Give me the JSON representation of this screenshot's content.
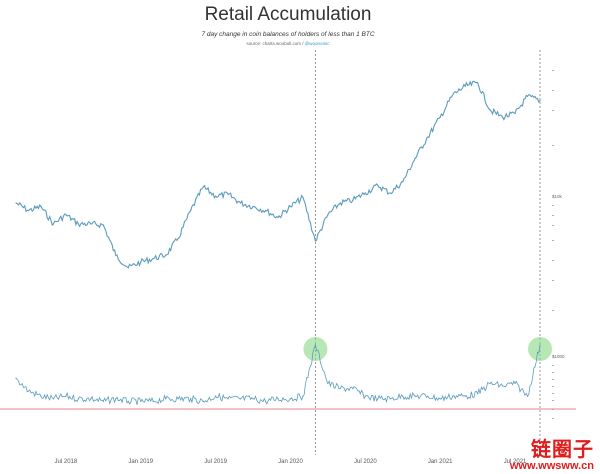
{
  "chart_data": {
    "type": "line",
    "title": "Retail Accumulation",
    "subtitle": "7 day change in coin balances of holders of less than 1 BTC",
    "source_label": "source: charts.woobull.com /",
    "source_handle": "@woonomic",
    "x_tick_labels": [
      "Jul 2018",
      "Jan 2019",
      "Jul 2019",
      "Jan 2020",
      "Jul 2020",
      "Jan 2021",
      "Jul 2021"
    ],
    "x_range": [
      "2018-03",
      "2021-09"
    ],
    "price_axis": {
      "scale": "log",
      "range": [
        2000,
        80000
      ],
      "tick_labels": [
        "$10k",
        "$1000"
      ]
    },
    "grid": false,
    "legend": "none",
    "series": [
      {
        "role": "price",
        "color": "#5b9bbe",
        "x": [
          "2018-03",
          "2018-04",
          "2018-05",
          "2018-06",
          "2018-07",
          "2018-08",
          "2018-09",
          "2018-10",
          "2018-11",
          "2018-12",
          "2019-01",
          "2019-02",
          "2019-03",
          "2019-04",
          "2019-05",
          "2019-06",
          "2019-07",
          "2019-08",
          "2019-09",
          "2019-10",
          "2019-11",
          "2019-12",
          "2020-01",
          "2020-02",
          "2020-03",
          "2020-04",
          "2020-05",
          "2020-06",
          "2020-07",
          "2020-08",
          "2020-09",
          "2020-10",
          "2020-11",
          "2020-12",
          "2021-01",
          "2021-02",
          "2021-03",
          "2021-04",
          "2021-05",
          "2021-06",
          "2021-07",
          "2021-08",
          "2021-09"
        ],
        "values": [
          9000,
          8000,
          8500,
          6500,
          7500,
          6500,
          6500,
          6400,
          4000,
          3300,
          3600,
          3800,
          4000,
          5200,
          8000,
          11500,
          10000,
          10300,
          9000,
          8500,
          8000,
          7200,
          8500,
          9800,
          5000,
          7500,
          9000,
          9400,
          10500,
          11800,
          10500,
          12500,
          18000,
          25000,
          34000,
          48000,
          55000,
          58000,
          38000,
          34000,
          36000,
          47000,
          44000
        ]
      },
      {
        "role": "retail_accumulation",
        "color": "#5b9bbe",
        "x": [
          "2018-03",
          "2018-04",
          "2018-05",
          "2018-06",
          "2018-07",
          "2018-08",
          "2018-09",
          "2018-10",
          "2018-11",
          "2018-12",
          "2019-01",
          "2019-02",
          "2019-03",
          "2019-04",
          "2019-05",
          "2019-06",
          "2019-07",
          "2019-08",
          "2019-09",
          "2019-10",
          "2019-11",
          "2019-12",
          "2020-01",
          "2020-02",
          "2020-03",
          "2020-04",
          "2020-05",
          "2020-06",
          "2020-07",
          "2020-08",
          "2020-09",
          "2020-10",
          "2020-11",
          "2020-12",
          "2021-01",
          "2021-02",
          "2021-03",
          "2021-04",
          "2021-05",
          "2021-06",
          "2021-07",
          "2021-08",
          "2021-09"
        ],
        "values": [
          1.2,
          0.7,
          0.5,
          0.4,
          0.5,
          0.4,
          0.4,
          0.3,
          0.4,
          0.3,
          0.3,
          0.3,
          0.4,
          0.4,
          0.4,
          0.3,
          0.5,
          0.4,
          0.4,
          0.4,
          0.3,
          0.4,
          0.4,
          0.5,
          2.5,
          1.0,
          0.8,
          0.8,
          0.5,
          0.4,
          0.4,
          0.5,
          0.5,
          0.5,
          0.4,
          0.5,
          0.5,
          0.6,
          1.0,
          0.9,
          1.0,
          0.5,
          2.5
        ]
      }
    ],
    "zero_line_color": "#e05a6a",
    "highlight_color": "#7dd37a",
    "annotations": [
      {
        "type": "vertical-dashed-line",
        "x": "2020-03"
      },
      {
        "type": "vertical-dashed-line",
        "x": "2021-09"
      },
      {
        "type": "highlight-circle",
        "x": "2020-03",
        "series": "retail_accumulation"
      },
      {
        "type": "highlight-circle",
        "x": "2021-09",
        "series": "retail_accumulation"
      }
    ]
  },
  "watermark": {
    "cn": "链圈子",
    "url": "www.wwsww.cn"
  }
}
